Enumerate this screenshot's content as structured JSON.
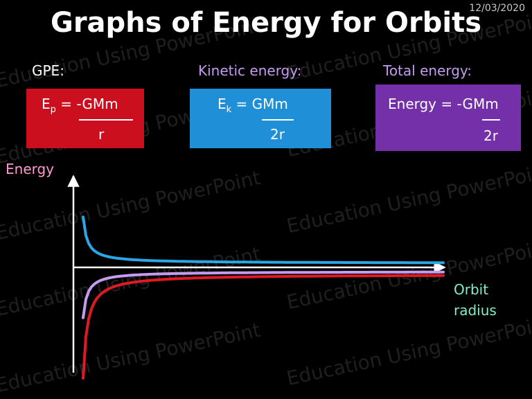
{
  "header": {
    "title": "Graphs of Energy for Orbits",
    "date": "12/03/2020"
  },
  "watermark_text": "Education Using PowerPoint",
  "formulas": {
    "gpe": {
      "label": "GPE:",
      "lhs_symbol": "E",
      "lhs_sub": "p",
      "eq_rest": "= -GMm",
      "denominator": "r",
      "color": "#cc0f1e"
    },
    "kinetic": {
      "label": "Kinetic energy:",
      "lhs_symbol": "E",
      "lhs_sub": "k",
      "eq_rest": "=  GMm",
      "denominator": "2r",
      "color": "#1f8fd8"
    },
    "total": {
      "label": "Total energy:",
      "numerator": "Energy = -GMm",
      "denominator": "2r",
      "color": "#7430a8"
    }
  },
  "graph": {
    "y_label": "Energy",
    "x_label_line1": "Orbit",
    "x_label_line2": "radius",
    "y_label_color": "#ff9ad0",
    "x_label_color": "#7ff0c8",
    "curve_colors": {
      "kinetic": "#29a7e6",
      "total": "#c59bf0",
      "gpe": "#e01a22"
    }
  }
}
